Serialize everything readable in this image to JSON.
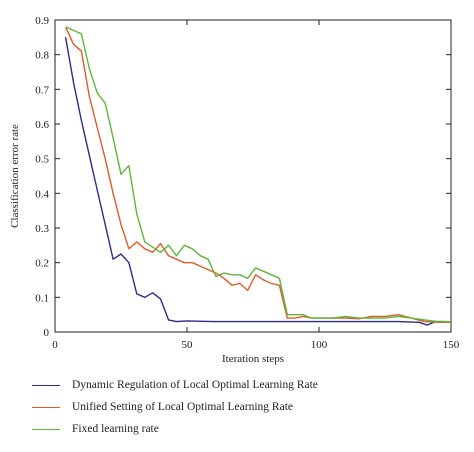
{
  "chart_data": {
    "type": "line",
    "xlabel": "Iteration steps",
    "ylabel": "Classification error rate",
    "xlim": [
      0,
      150
    ],
    "ylim": [
      0,
      0.9
    ],
    "xticks": [
      0,
      50,
      100,
      150
    ],
    "yticks": [
      0,
      0.1,
      0.2,
      0.3,
      0.4,
      0.5,
      0.6,
      0.7,
      0.8,
      0.9
    ],
    "ytick_labels": [
      "0",
      "0.1",
      "0.2",
      "0.3",
      "0.4",
      "0.5",
      "0.6",
      "0.7",
      "0.8",
      "0.9"
    ],
    "grid": false,
    "legend_position": "bottom-outside",
    "series": [
      {
        "name": "Dynamic Regulation of Local Optimal Learning Rate",
        "color": "#2b2b8c",
        "x": [
          4,
          7,
          10,
          13,
          16,
          19,
          22,
          25,
          28,
          31,
          34,
          37,
          40,
          43,
          46,
          50,
          60,
          70,
          80,
          90,
          100,
          110,
          120,
          130,
          138,
          141,
          144,
          148
        ],
        "y": [
          0.85,
          0.72,
          0.61,
          0.51,
          0.41,
          0.31,
          0.21,
          0.225,
          0.2,
          0.11,
          0.1,
          0.113,
          0.095,
          0.035,
          0.03,
          0.032,
          0.03,
          0.03,
          0.03,
          0.03,
          0.03,
          0.03,
          0.03,
          0.03,
          0.028,
          0.02,
          0.03,
          0.03
        ]
      },
      {
        "name": "Unified Setting of Local Optimal Learning Rate",
        "color": "#e05a2b",
        "x": [
          4,
          7,
          10,
          13,
          16,
          19,
          22,
          25,
          28,
          31,
          34,
          37,
          40,
          43,
          46,
          49,
          52,
          55,
          58,
          61,
          64,
          67,
          70,
          73,
          76,
          79,
          82,
          85,
          88,
          91,
          94,
          97,
          100,
          105,
          110,
          115,
          120,
          125,
          130,
          135,
          140,
          145,
          150
        ],
        "y": [
          0.88,
          0.83,
          0.81,
          0.68,
          0.59,
          0.5,
          0.4,
          0.31,
          0.24,
          0.26,
          0.24,
          0.23,
          0.255,
          0.22,
          0.21,
          0.2,
          0.2,
          0.19,
          0.18,
          0.17,
          0.155,
          0.135,
          0.14,
          0.12,
          0.165,
          0.15,
          0.14,
          0.135,
          0.04,
          0.04,
          0.045,
          0.04,
          0.04,
          0.04,
          0.04,
          0.038,
          0.045,
          0.045,
          0.05,
          0.04,
          0.03,
          0.028,
          0.028
        ]
      },
      {
        "name": "Fixed learning rate",
        "color": "#5db83a",
        "x": [
          4,
          7,
          10,
          13,
          16,
          19,
          22,
          25,
          28,
          31,
          34,
          37,
          40,
          43,
          46,
          49,
          52,
          55,
          58,
          61,
          64,
          67,
          70,
          73,
          76,
          79,
          82,
          85,
          88,
          91,
          94,
          97,
          100,
          105,
          110,
          115,
          120,
          125,
          130,
          135,
          140,
          145,
          150
        ],
        "y": [
          0.88,
          0.87,
          0.86,
          0.76,
          0.69,
          0.66,
          0.56,
          0.455,
          0.48,
          0.34,
          0.26,
          0.245,
          0.23,
          0.25,
          0.22,
          0.25,
          0.24,
          0.22,
          0.21,
          0.16,
          0.17,
          0.165,
          0.165,
          0.155,
          0.185,
          0.175,
          0.165,
          0.155,
          0.05,
          0.05,
          0.05,
          0.04,
          0.04,
          0.04,
          0.045,
          0.04,
          0.04,
          0.04,
          0.045,
          0.04,
          0.035,
          0.03,
          0.03
        ]
      }
    ]
  }
}
